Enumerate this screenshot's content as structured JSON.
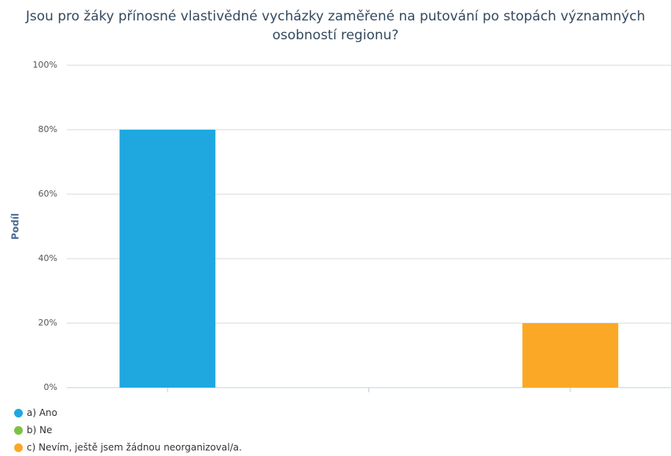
{
  "chart_data": {
    "type": "bar",
    "title": "Jsou pro žáky přínosné vlastivědné vycházky zaměřené na putování po stopách významných osobností regionu?",
    "y_label": "Podíl",
    "series": [
      {
        "name": "a) Ano",
        "color": "#1fa8e0",
        "values": [
          80
        ]
      },
      {
        "name": "b) Ne",
        "color": "#7dc243",
        "values": [
          0
        ]
      },
      {
        "name": "c) Nevím, ještě jsem žádnou neorganizoval/a.",
        "color": "#fba826",
        "values": [
          20
        ]
      }
    ],
    "ylim": [
      0,
      100
    ],
    "yticks": [
      {
        "value": 0,
        "label": "0%"
      },
      {
        "value": 20,
        "label": "20%"
      },
      {
        "value": 40,
        "label": "40%"
      },
      {
        "value": 60,
        "label": "60%"
      },
      {
        "value": 80,
        "label": "80%"
      },
      {
        "value": 100,
        "label": "100%"
      }
    ],
    "grid": true
  }
}
